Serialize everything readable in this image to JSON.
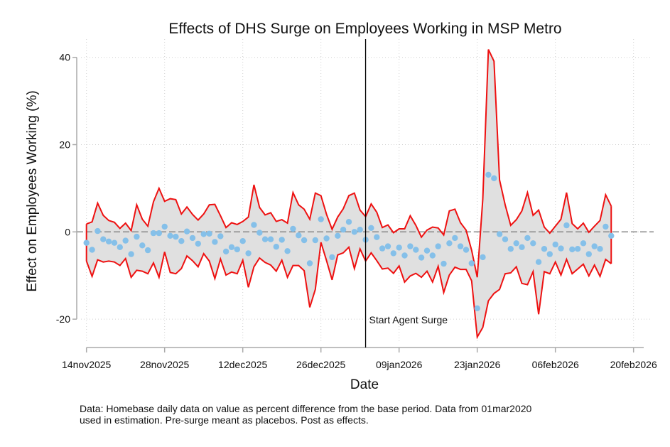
{
  "chart_data": {
    "type": "line",
    "title": "Effects of DHS Surge on Employees Working in MSP Metro",
    "xlabel": "Date",
    "ylabel": "Effect on Employees Working (%)",
    "x_start_date": "14nov2025",
    "x_unit": "day",
    "xlim_days": [
      0,
      100
    ],
    "ylim": [
      -26,
      44
    ],
    "x_ticks": [
      {
        "day": 0,
        "label": "14nov2025"
      },
      {
        "day": 14,
        "label": "28nov2025"
      },
      {
        "day": 28,
        "label": "12dec2025"
      },
      {
        "day": 42,
        "label": "26dec2025"
      },
      {
        "day": 56,
        "label": "09jan2026"
      },
      {
        "day": 70,
        "label": "23jan2026"
      },
      {
        "day": 84,
        "label": "06feb2026"
      },
      {
        "day": 98,
        "label": "20feb2026"
      }
    ],
    "y_ticks": [
      {
        "value": 40,
        "label": "40"
      },
      {
        "value": 20,
        "label": "20"
      },
      {
        "value": 0,
        "label": "0"
      },
      {
        "value": -20,
        "label": "-20"
      }
    ],
    "grid": true,
    "reference_line_y": 0,
    "event_line": {
      "day": 50,
      "label": "Start Agent Surge",
      "label_y": -20.5
    },
    "colors": {
      "point": "#85c0e9",
      "ci_line": "#ee1111",
      "ci_fill": "#e0e0e0",
      "event_line": "#000000",
      "reference_line": "#888888"
    },
    "series": [
      {
        "name": "Effect (point estimate)",
        "style": "scatter",
        "values": [
          -2.5,
          -4.1,
          0.2,
          -1.7,
          -2.2,
          -2.5,
          -3.5,
          -2.0,
          -5.1,
          -1.1,
          -3.1,
          -4.2,
          -0.3,
          -0.3,
          1.2,
          -0.9,
          -1.1,
          -2.1,
          0.1,
          -1.4,
          -2.7,
          -0.5,
          -0.4,
          -2.3,
          -1.0,
          -4.5,
          -3.5,
          -4.0,
          -2.1,
          -4.9,
          1.6,
          -0.2,
          -1.7,
          -1.7,
          -3.4,
          -1.8,
          -4.4,
          0.7,
          -0.8,
          -1.9,
          -7.2,
          -1.9,
          2.9,
          -1.5,
          -5.8,
          -0.9,
          0.5,
          2.3,
          0.0,
          0.5,
          -1.8,
          0.9,
          -1.2,
          -3.8,
          -3.3,
          -4.9,
          -3.6,
          -5.4,
          -3.3,
          -4.1,
          -5.9,
          -4.3,
          -5.4,
          -3.3,
          -7.3,
          -2.6,
          -1.4,
          -3.3,
          -4.1,
          -7.2,
          -17.5,
          -5.8,
          13.1,
          12.3,
          -0.5,
          -1.7,
          -3.9,
          -2.6,
          -3.5,
          -1.4,
          -2.6,
          -6.9,
          -3.9,
          -5.1,
          -2.9,
          -3.8,
          1.5,
          -4.0,
          -3.9,
          -2.6,
          -5.1,
          -3.3,
          -3.9,
          1.2,
          -0.9
        ]
      },
      {
        "name": "Upper CI",
        "style": "line",
        "values": [
          1.8,
          2.3,
          6.6,
          3.8,
          2.6,
          2.2,
          0.8,
          2.0,
          0.3,
          6.2,
          2.9,
          1.3,
          6.9,
          10.0,
          7.0,
          7.6,
          7.4,
          4.1,
          5.7,
          4.0,
          2.7,
          4.1,
          6.2,
          6.3,
          3.7,
          1.0,
          2.1,
          1.7,
          2.4,
          3.4,
          10.8,
          5.6,
          3.9,
          4.4,
          2.4,
          2.8,
          2.0,
          9.0,
          6.2,
          5.2,
          2.9,
          8.9,
          8.3,
          4.0,
          0.6,
          3.4,
          5.3,
          8.3,
          8.9,
          5.0,
          3.5,
          6.4,
          4.5,
          1.0,
          1.6,
          -0.2,
          0.7,
          0.7,
          3.7,
          1.5,
          -1.2,
          0.4,
          1.1,
          0.9,
          -0.7,
          4.8,
          5.2,
          2.1,
          0.4,
          -4.2,
          -10.4,
          7.5,
          41.8,
          39.1,
          11.9,
          6.2,
          1.5,
          2.8,
          4.8,
          9.0,
          3.8,
          5.0,
          1.1,
          -0.3,
          1.3,
          2.9,
          9.0,
          1.9,
          0.7,
          2.0,
          -0.1,
          1.3,
          2.6,
          8.5,
          5.9
        ]
      },
      {
        "name": "Lower CI",
        "style": "line",
        "values": [
          -6.7,
          -10.2,
          -6.4,
          -6.9,
          -6.7,
          -6.9,
          -7.7,
          -6.1,
          -10.4,
          -8.8,
          -9.0,
          -9.6,
          -7.1,
          -10.4,
          -4.6,
          -9.3,
          -9.6,
          -8.4,
          -5.5,
          -6.6,
          -8.0,
          -5.0,
          -6.7,
          -10.7,
          -6.2,
          -9.9,
          -9.2,
          -9.6,
          -6.5,
          -12.7,
          -8.0,
          -6.0,
          -7.0,
          -7.6,
          -9.0,
          -6.5,
          -10.4,
          -7.7,
          -7.7,
          -8.9,
          -17.3,
          -13.2,
          -2.4,
          -6.6,
          -11.0,
          -5.3,
          -4.8,
          -3.5,
          -8.4,
          -3.9,
          -6.7,
          -4.8,
          -6.6,
          -8.5,
          -8.3,
          -9.5,
          -7.8,
          -11.5,
          -10.1,
          -9.5,
          -10.4,
          -9.0,
          -11.5,
          -7.9,
          -13.9,
          -9.9,
          -8.1,
          -8.6,
          -8.6,
          -11.2,
          -24.1,
          -21.9,
          -15.8,
          -14.1,
          -13.2,
          -9.6,
          -9.4,
          -8.0,
          -11.8,
          -12.1,
          -9.1,
          -18.9,
          -9.1,
          -9.6,
          -6.9,
          -9.9,
          -6.3,
          -9.6,
          -8.5,
          -7.4,
          -10.1,
          -7.6,
          -10.2,
          -6.3,
          -7.3
        ]
      }
    ]
  },
  "note": {
    "line1": "Data: Homebase daily data on value as percent difference from the base period. Data from 01mar2020",
    "line2": "used in estimation. Pre-surge meant as placebos. Post as effects."
  }
}
